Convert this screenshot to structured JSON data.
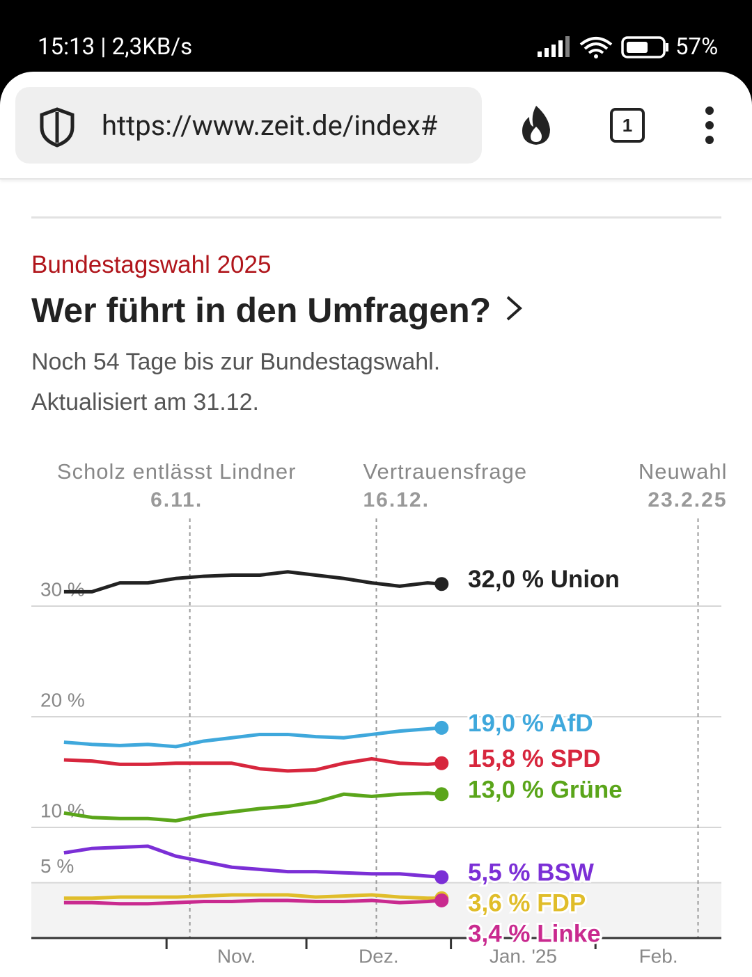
{
  "status_bar": {
    "time": "15:13 | 2,3KB/s",
    "battery": "57%"
  },
  "browser": {
    "url": "https://www.zeit.de/index#",
    "tabs": "1"
  },
  "article": {
    "kicker": "Bundestagswahl 2025",
    "title": "Wer führt in den Umfragen?",
    "lines": [
      "Noch 54 Tage bis zur Bundestagswahl.",
      "Aktualisiert am 31.12."
    ]
  },
  "chart_data": {
    "type": "line",
    "x": [
      -22,
      -16,
      -10,
      -4,
      2,
      8,
      14,
      20,
      26,
      32,
      38,
      44,
      50,
      56,
      59
    ],
    "xlim": [
      -29,
      119
    ],
    "xticks": [
      {
        "value": 0,
        "label": "Nov."
      },
      {
        "value": 30,
        "label": "Dez."
      },
      {
        "value": 61,
        "label": "Jan. '25"
      },
      {
        "value": 92,
        "label": "Feb."
      }
    ],
    "ylim": [
      0,
      37.6
    ],
    "yticks": [
      {
        "value": 5,
        "label": "5 %"
      },
      {
        "value": 10,
        "label": "10 %"
      },
      {
        "value": 20,
        "label": "20 %"
      },
      {
        "value": 30,
        "label": "30 %"
      }
    ],
    "grid": true,
    "annotations": [
      {
        "label": "Scholz entlässt Lindner",
        "date": "6.11.",
        "x": 5
      },
      {
        "label": "Vertrauensfrage",
        "date": "16.12.",
        "x": 45
      },
      {
        "label": "Neuwahl",
        "date": "23.2.25",
        "x": 114
      }
    ],
    "series": [
      {
        "name": "Union",
        "color": "#222222",
        "values": [
          31.3,
          31.3,
          32.1,
          32.1,
          32.5,
          32.7,
          32.8,
          32.8,
          33.1,
          32.8,
          32.5,
          32.1,
          31.8,
          32.1,
          32.0
        ],
        "value_labels": [
          null,
          null,
          null,
          null,
          null,
          null,
          null,
          null,
          null,
          null,
          null,
          null,
          null,
          null,
          "32,0 %"
        ]
      },
      {
        "name": "AfD",
        "color": "#3fa8dc",
        "values": [
          17.7,
          17.5,
          17.4,
          17.5,
          17.3,
          17.8,
          18.1,
          18.4,
          18.4,
          18.2,
          18.1,
          18.4,
          18.7,
          18.9,
          19.0
        ],
        "value_labels": [
          null,
          null,
          null,
          null,
          null,
          null,
          null,
          null,
          null,
          null,
          null,
          null,
          null,
          null,
          "19,0 %"
        ]
      },
      {
        "name": "SPD",
        "color": "#d7263d",
        "values": [
          16.1,
          16.0,
          15.7,
          15.7,
          15.8,
          15.8,
          15.8,
          15.3,
          15.1,
          15.2,
          15.8,
          16.2,
          15.8,
          15.7,
          15.8
        ],
        "value_labels": [
          null,
          null,
          null,
          null,
          null,
          null,
          null,
          null,
          null,
          null,
          null,
          null,
          null,
          null,
          "15,8 %"
        ]
      },
      {
        "name": "Grüne",
        "color": "#5aa51a",
        "values": [
          11.3,
          10.9,
          10.8,
          10.8,
          10.6,
          11.1,
          11.4,
          11.7,
          11.9,
          12.3,
          13.0,
          12.8,
          13.0,
          13.1,
          13.0
        ],
        "value_labels": [
          null,
          null,
          null,
          null,
          null,
          null,
          null,
          null,
          null,
          null,
          null,
          null,
          null,
          null,
          "13,0 %"
        ]
      },
      {
        "name": "BSW",
        "color": "#7b2fd6",
        "values": [
          7.7,
          8.1,
          8.2,
          8.3,
          7.4,
          6.9,
          6.4,
          6.2,
          6.0,
          6.0,
          5.9,
          5.8,
          5.8,
          5.6,
          5.5
        ],
        "value_labels": [
          null,
          null,
          null,
          null,
          null,
          null,
          null,
          null,
          null,
          null,
          null,
          null,
          null,
          null,
          "5,5 %"
        ]
      },
      {
        "name": "FDP",
        "color": "#e0bd2a",
        "values": [
          3.6,
          3.6,
          3.7,
          3.7,
          3.7,
          3.8,
          3.9,
          3.9,
          3.9,
          3.7,
          3.8,
          3.9,
          3.7,
          3.6,
          3.6
        ],
        "value_labels": [
          null,
          null,
          null,
          null,
          null,
          null,
          null,
          null,
          null,
          null,
          null,
          null,
          null,
          null,
          "3,6 %"
        ]
      },
      {
        "name": "Linke",
        "color": "#c92a8f",
        "values": [
          3.2,
          3.2,
          3.1,
          3.1,
          3.2,
          3.3,
          3.3,
          3.4,
          3.4,
          3.3,
          3.3,
          3.4,
          3.2,
          3.3,
          3.4
        ],
        "value_labels": [
          null,
          null,
          null,
          null,
          null,
          null,
          null,
          null,
          null,
          null,
          null,
          null,
          null,
          null,
          "3,4 %"
        ]
      }
    ]
  }
}
